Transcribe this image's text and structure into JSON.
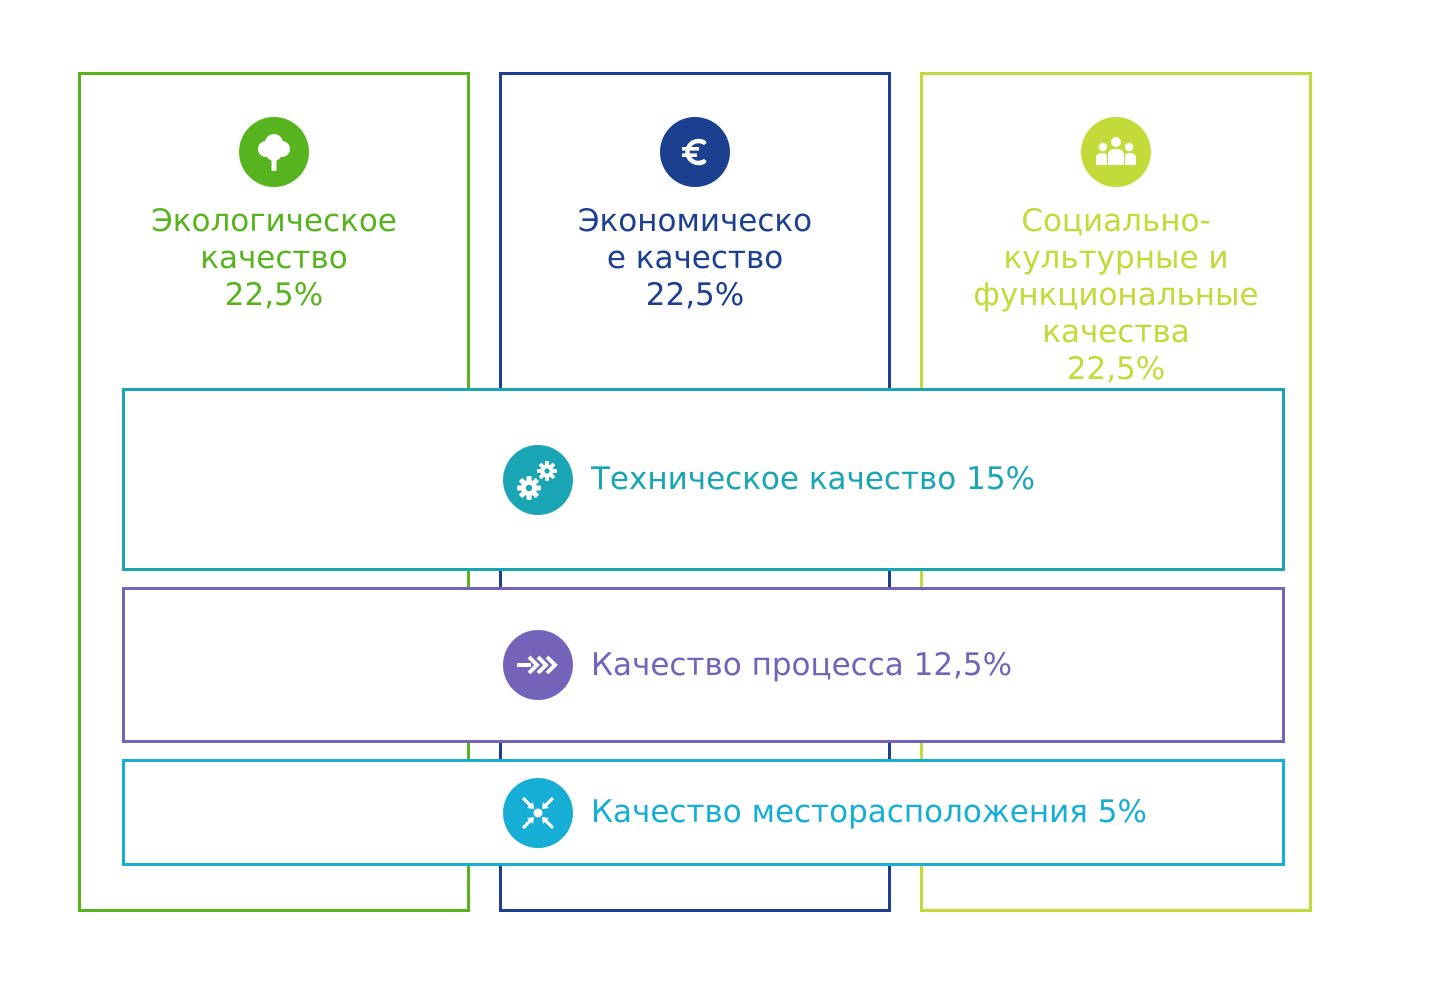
{
  "colors": {
    "ecological": "#57b41f",
    "economic": "#1d3f8f",
    "social": "#c4d93a",
    "technical": "#1aa5b5",
    "process": "#7563ba",
    "location": "#17aed6"
  },
  "pillars": [
    {
      "id": "ecological",
      "icon": "tree-icon",
      "lines": [
        "Экологическое",
        "качество"
      ],
      "percent": "22,5%"
    },
    {
      "id": "economic",
      "icon": "euro-icon",
      "lines": [
        "Экономическо",
        "е качество"
      ],
      "percent": "22,5%"
    },
    {
      "id": "social",
      "icon": "people-group-icon",
      "lines": [
        "Социально-",
        "культурные и",
        "функциональные",
        "качества"
      ],
      "percent": "22,5%"
    }
  ],
  "bands": [
    {
      "id": "technical",
      "icon": "gears-icon",
      "label": "Техническое качество 15%"
    },
    {
      "id": "process",
      "icon": "arrows-right-icon",
      "label": "Качество процесса 12,5%"
    },
    {
      "id": "location",
      "icon": "converge-arrows-icon",
      "label": "Качество месторасположения 5%"
    }
  ]
}
